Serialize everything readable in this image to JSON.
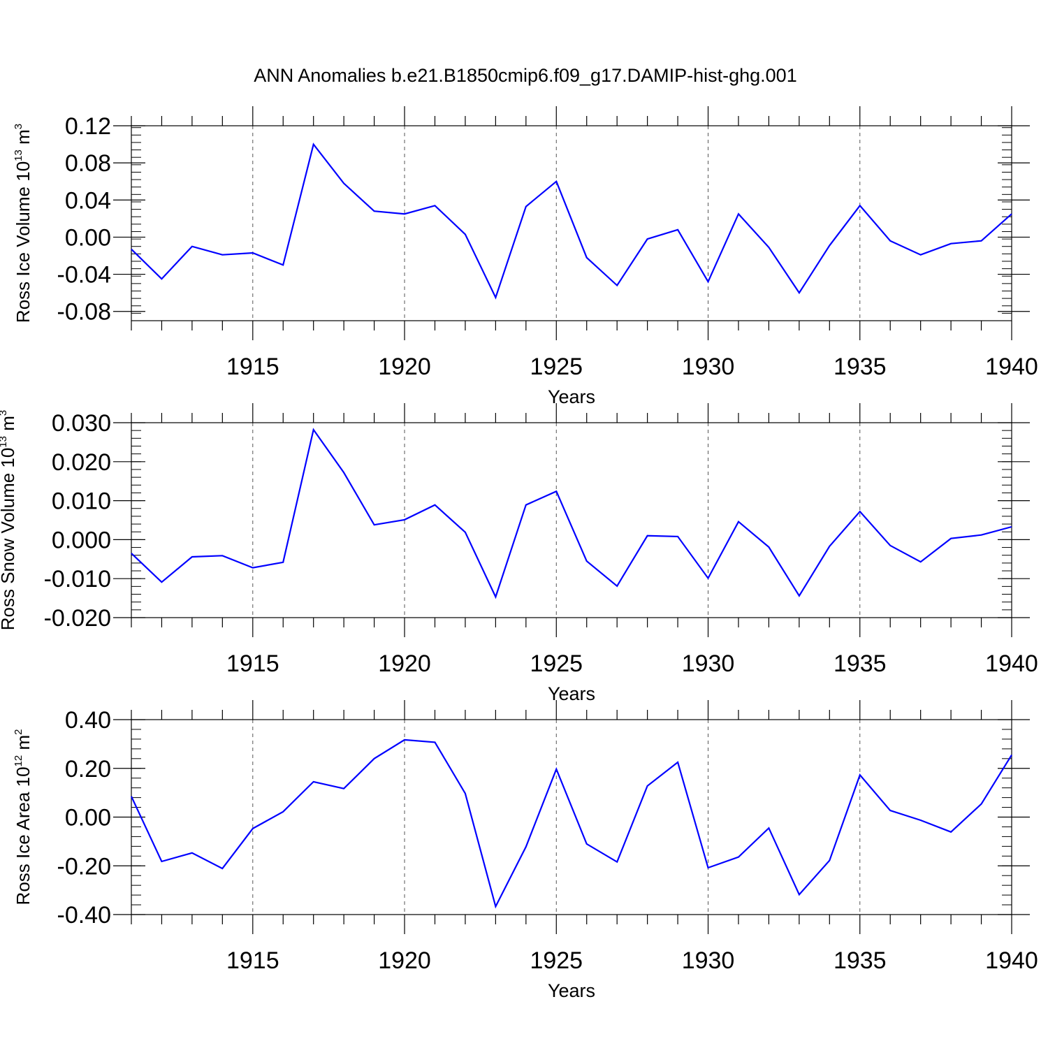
{
  "title": "ANN Anomalies b.e21.B1850cmip6.f09_g17.DAMIP-hist-ghg.001",
  "colors": {
    "line": "#0000ff",
    "axis": "#000000",
    "grid": "#555555"
  },
  "chart_data": [
    {
      "type": "line",
      "ylabel": {
        "text": "Ross Ice Volume 10",
        "exp": "13",
        "unit": " m",
        "unit_exp": "3"
      },
      "xlabel": "Years",
      "xlim": [
        1911,
        1940
      ],
      "ylim": [
        -0.09,
        0.12
      ],
      "x_ticks": [
        1915,
        1920,
        1925,
        1930,
        1935,
        1940
      ],
      "x_tick_labels": [
        "1915",
        "1920",
        "1925",
        "1930",
        "1935",
        "1940"
      ],
      "y_ticks": [
        -0.08,
        -0.04,
        0.0,
        0.04,
        0.08,
        0.12
      ],
      "y_tick_labels": [
        "-0.08",
        "-0.04",
        "0.00",
        "0.04",
        "0.08",
        "0.12"
      ],
      "y_minor_step": 0.008,
      "grid": "vertical dashed at major x ticks",
      "series": [
        {
          "x": [
            1911,
            1912,
            1913,
            1914,
            1915,
            1916,
            1917,
            1918,
            1919,
            1920,
            1921,
            1922,
            1923,
            1924,
            1925,
            1926,
            1927,
            1928,
            1929,
            1930,
            1931,
            1932,
            1933,
            1934,
            1935,
            1936,
            1937,
            1938,
            1939,
            1940
          ],
          "values": [
            -0.013,
            -0.045,
            -0.01,
            -0.019,
            -0.017,
            -0.03,
            0.1,
            0.058,
            0.028,
            0.025,
            0.034,
            0.003,
            -0.065,
            0.033,
            0.06,
            -0.022,
            -0.052,
            -0.002,
            0.008,
            -0.048,
            0.025,
            -0.011,
            -0.06,
            -0.009,
            0.034,
            -0.004,
            -0.019,
            -0.007,
            -0.004,
            0.025
          ]
        }
      ]
    },
    {
      "type": "line",
      "ylabel": {
        "text": "Ross Snow Volume 10",
        "exp": "13",
        "unit": " m",
        "unit_exp": "3"
      },
      "xlabel": "Years",
      "xlim": [
        1911,
        1940
      ],
      "ylim": [
        -0.02,
        0.03
      ],
      "x_ticks": [
        1915,
        1920,
        1925,
        1930,
        1935,
        1940
      ],
      "x_tick_labels": [
        "1915",
        "1920",
        "1925",
        "1930",
        "1935",
        "1940"
      ],
      "y_ticks": [
        -0.02,
        -0.01,
        0.0,
        0.01,
        0.02,
        0.03
      ],
      "y_tick_labels": [
        "-0.020",
        "-0.010",
        "0.000",
        "0.010",
        "0.020",
        "0.030"
      ],
      "y_minor_step": 0.002,
      "grid": "vertical dashed at major x ticks",
      "series": [
        {
          "x": [
            1911,
            1912,
            1913,
            1914,
            1915,
            1916,
            1917,
            1918,
            1919,
            1920,
            1921,
            1922,
            1923,
            1924,
            1925,
            1926,
            1927,
            1928,
            1929,
            1930,
            1931,
            1932,
            1933,
            1934,
            1935,
            1936,
            1937,
            1938,
            1939,
            1940
          ],
          "values": [
            -0.0035,
            -0.0109,
            -0.0044,
            -0.0041,
            -0.0072,
            -0.0058,
            0.0282,
            0.0172,
            0.0038,
            0.0051,
            0.0089,
            0.0019,
            -0.0147,
            0.0089,
            0.0124,
            -0.0055,
            -0.0119,
            0.001,
            0.0008,
            -0.0099,
            0.0046,
            -0.0019,
            -0.0144,
            -0.0017,
            0.0072,
            -0.0015,
            -0.0057,
            0.0003,
            0.0012,
            0.0033
          ]
        }
      ]
    },
    {
      "type": "line",
      "ylabel": {
        "text": "Ross Ice Area 10",
        "exp": "12",
        "unit": " m",
        "unit_exp": "2"
      },
      "xlabel": "Years",
      "xlim": [
        1911,
        1940
      ],
      "ylim": [
        -0.4,
        0.4
      ],
      "x_ticks": [
        1915,
        1920,
        1925,
        1930,
        1935,
        1940
      ],
      "x_tick_labels": [
        "1915",
        "1920",
        "1925",
        "1930",
        "1935",
        "1940"
      ],
      "y_ticks": [
        -0.4,
        -0.2,
        0.0,
        0.2,
        0.4
      ],
      "y_tick_labels": [
        "-0.40",
        "-0.20",
        "0.00",
        "0.20",
        "0.40"
      ],
      "y_minor_step": 0.04,
      "grid": "vertical dashed at major x ticks",
      "series": [
        {
          "x": [
            1911,
            1912,
            1913,
            1914,
            1915,
            1916,
            1917,
            1918,
            1919,
            1920,
            1921,
            1922,
            1923,
            1924,
            1925,
            1926,
            1927,
            1928,
            1929,
            1930,
            1931,
            1932,
            1933,
            1934,
            1935,
            1936,
            1937,
            1938,
            1939,
            1940
          ],
          "values": [
            0.085,
            -0.182,
            -0.147,
            -0.211,
            -0.047,
            0.022,
            0.145,
            0.117,
            0.24,
            0.317,
            0.307,
            0.097,
            -0.367,
            -0.122,
            0.197,
            -0.11,
            -0.184,
            0.128,
            0.225,
            -0.208,
            -0.164,
            -0.045,
            -0.318,
            -0.178,
            0.173,
            0.027,
            -0.013,
            -0.061,
            0.054,
            0.255
          ]
        }
      ]
    }
  ]
}
